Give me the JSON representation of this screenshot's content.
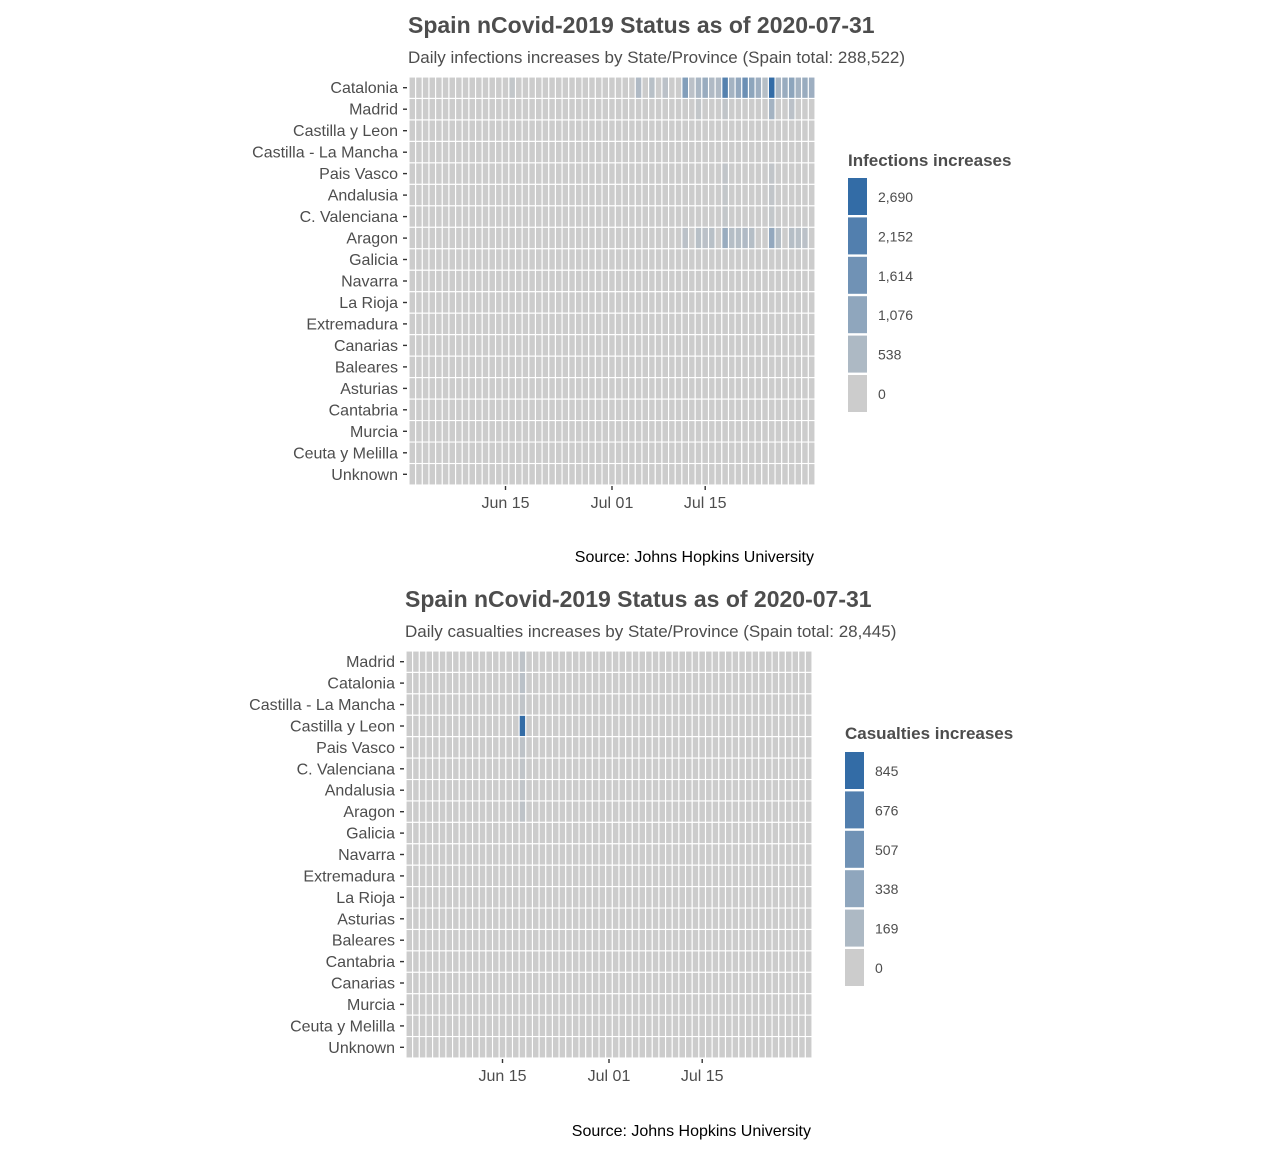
{
  "chart_data": [
    {
      "type": "heatmap",
      "title": "Spain nCovid-2019 Status as of 2020-07-31",
      "subtitle": "Daily infections increases by State/Province (Spain total: 288,522)",
      "caption": "Source: Johns Hopkins University",
      "legend_title": "Infections increases",
      "legend_labels": [
        "2,690",
        "2,152",
        "1,614",
        "1,076",
        "538",
        "0"
      ],
      "legend_values": [
        2690,
        2152,
        1614,
        1076,
        538,
        0
      ],
      "legend_placement": "right",
      "date_start": "2020-06-01",
      "date_end": "2020-07-31",
      "x_ticks": [
        {
          "label": "Jun 15",
          "date": "2020-06-15"
        },
        {
          "label": "Jul 01",
          "date": "2020-07-01"
        },
        {
          "label": "Jul 15",
          "date": "2020-07-15"
        }
      ],
      "rows": [
        "Catalonia",
        "Madrid",
        "Castilla y Leon",
        "Castilla - La Mancha",
        "Pais Vasco",
        "Andalusia",
        "C. Valenciana",
        "Aragon",
        "Galicia",
        "Navarra",
        "La Rioja",
        "Extremadura",
        "Canarias",
        "Baleares",
        "Asturias",
        "Cantabria",
        "Murcia",
        "Ceuta y Melilla",
        "Unknown"
      ],
      "nonzero_cells": [
        {
          "row": "Catalonia",
          "date": "2020-06-16",
          "value": 150
        },
        {
          "row": "Catalonia",
          "date": "2020-07-05",
          "value": 500
        },
        {
          "row": "Catalonia",
          "date": "2020-07-07",
          "value": 350
        },
        {
          "row": "Catalonia",
          "date": "2020-07-09",
          "value": 300
        },
        {
          "row": "Catalonia",
          "date": "2020-07-12",
          "value": 1300
        },
        {
          "row": "Catalonia",
          "date": "2020-07-13",
          "value": 300
        },
        {
          "row": "Catalonia",
          "date": "2020-07-14",
          "value": 600
        },
        {
          "row": "Catalonia",
          "date": "2020-07-15",
          "value": 900
        },
        {
          "row": "Catalonia",
          "date": "2020-07-16",
          "value": 500
        },
        {
          "row": "Catalonia",
          "date": "2020-07-17",
          "value": 500
        },
        {
          "row": "Catalonia",
          "date": "2020-07-18",
          "value": 2100
        },
        {
          "row": "Catalonia",
          "date": "2020-07-19",
          "value": 700
        },
        {
          "row": "Catalonia",
          "date": "2020-07-20",
          "value": 1000
        },
        {
          "row": "Catalonia",
          "date": "2020-07-21",
          "value": 1700
        },
        {
          "row": "Catalonia",
          "date": "2020-07-22",
          "value": 1100
        },
        {
          "row": "Catalonia",
          "date": "2020-07-23",
          "value": 800
        },
        {
          "row": "Catalonia",
          "date": "2020-07-24",
          "value": 400
        },
        {
          "row": "Catalonia",
          "date": "2020-07-25",
          "value": 2690
        },
        {
          "row": "Catalonia",
          "date": "2020-07-26",
          "value": 600
        },
        {
          "row": "Catalonia",
          "date": "2020-07-27",
          "value": 900
        },
        {
          "row": "Catalonia",
          "date": "2020-07-28",
          "value": 1100
        },
        {
          "row": "Catalonia",
          "date": "2020-07-29",
          "value": 700
        },
        {
          "row": "Catalonia",
          "date": "2020-07-30",
          "value": 900
        },
        {
          "row": "Catalonia",
          "date": "2020-07-31",
          "value": 800
        },
        {
          "row": "Madrid",
          "date": "2020-07-14",
          "value": 150
        },
        {
          "row": "Madrid",
          "date": "2020-07-18",
          "value": 200
        },
        {
          "row": "Madrid",
          "date": "2020-07-25",
          "value": 700
        },
        {
          "row": "Madrid",
          "date": "2020-07-28",
          "value": 300
        },
        {
          "row": "Pais Vasco",
          "date": "2020-07-18",
          "value": 200
        },
        {
          "row": "Pais Vasco",
          "date": "2020-07-25",
          "value": 200
        },
        {
          "row": "Andalusia",
          "date": "2020-07-18",
          "value": 150
        },
        {
          "row": "Andalusia",
          "date": "2020-07-25",
          "value": 200
        },
        {
          "row": "C. Valenciana",
          "date": "2020-07-18",
          "value": 150
        },
        {
          "row": "C. Valenciana",
          "date": "2020-07-25",
          "value": 150
        },
        {
          "row": "Aragon",
          "date": "2020-07-12",
          "value": 300
        },
        {
          "row": "Aragon",
          "date": "2020-07-14",
          "value": 350
        },
        {
          "row": "Aragon",
          "date": "2020-07-15",
          "value": 300
        },
        {
          "row": "Aragon",
          "date": "2020-07-16",
          "value": 350
        },
        {
          "row": "Aragon",
          "date": "2020-07-18",
          "value": 900
        },
        {
          "row": "Aragon",
          "date": "2020-07-19",
          "value": 400
        },
        {
          "row": "Aragon",
          "date": "2020-07-20",
          "value": 400
        },
        {
          "row": "Aragon",
          "date": "2020-07-21",
          "value": 500
        },
        {
          "row": "Aragon",
          "date": "2020-07-22",
          "value": 400
        },
        {
          "row": "Aragon",
          "date": "2020-07-25",
          "value": 1000
        },
        {
          "row": "Aragon",
          "date": "2020-07-26",
          "value": 400
        },
        {
          "row": "Aragon",
          "date": "2020-07-28",
          "value": 400
        },
        {
          "row": "Aragon",
          "date": "2020-07-29",
          "value": 350
        },
        {
          "row": "Aragon",
          "date": "2020-07-30",
          "value": 300
        }
      ]
    },
    {
      "type": "heatmap",
      "title": "Spain nCovid-2019 Status as of 2020-07-31",
      "subtitle": "Daily casualties increases by State/Province (Spain total: 28,445)",
      "caption": "Source: Johns Hopkins University",
      "legend_title": "Casualties increases",
      "legend_labels": [
        "845",
        "676",
        "507",
        "338",
        "169",
        "0"
      ],
      "legend_values": [
        845,
        676,
        507,
        338,
        169,
        0
      ],
      "legend_placement": "right",
      "date_start": "2020-06-01",
      "date_end": "2020-07-31",
      "x_ticks": [
        {
          "label": "Jun 15",
          "date": "2020-06-15"
        },
        {
          "label": "Jul 01",
          "date": "2020-07-01"
        },
        {
          "label": "Jul 15",
          "date": "2020-07-15"
        }
      ],
      "rows": [
        "Madrid",
        "Catalonia",
        "Castilla - La Mancha",
        "Castilla y Leon",
        "Pais Vasco",
        "C. Valenciana",
        "Andalusia",
        "Aragon",
        "Galicia",
        "Navarra",
        "Extremadura",
        "La Rioja",
        "Asturias",
        "Baleares",
        "Cantabria",
        "Canarias",
        "Murcia",
        "Ceuta y Melilla",
        "Unknown"
      ],
      "nonzero_cells": [
        {
          "row": "Madrid",
          "date": "2020-06-18",
          "value": 80
        },
        {
          "row": "Catalonia",
          "date": "2020-06-18",
          "value": 100
        },
        {
          "row": "Castilla - La Mancha",
          "date": "2020-06-18",
          "value": 60
        },
        {
          "row": "Castilla y Leon",
          "date": "2020-06-18",
          "value": 845
        },
        {
          "row": "Pais Vasco",
          "date": "2020-06-18",
          "value": 80
        },
        {
          "row": "C. Valenciana",
          "date": "2020-06-18",
          "value": 60
        },
        {
          "row": "Andalusia",
          "date": "2020-06-18",
          "value": 60
        },
        {
          "row": "Aragon",
          "date": "2020-06-18",
          "value": 80
        }
      ]
    }
  ]
}
